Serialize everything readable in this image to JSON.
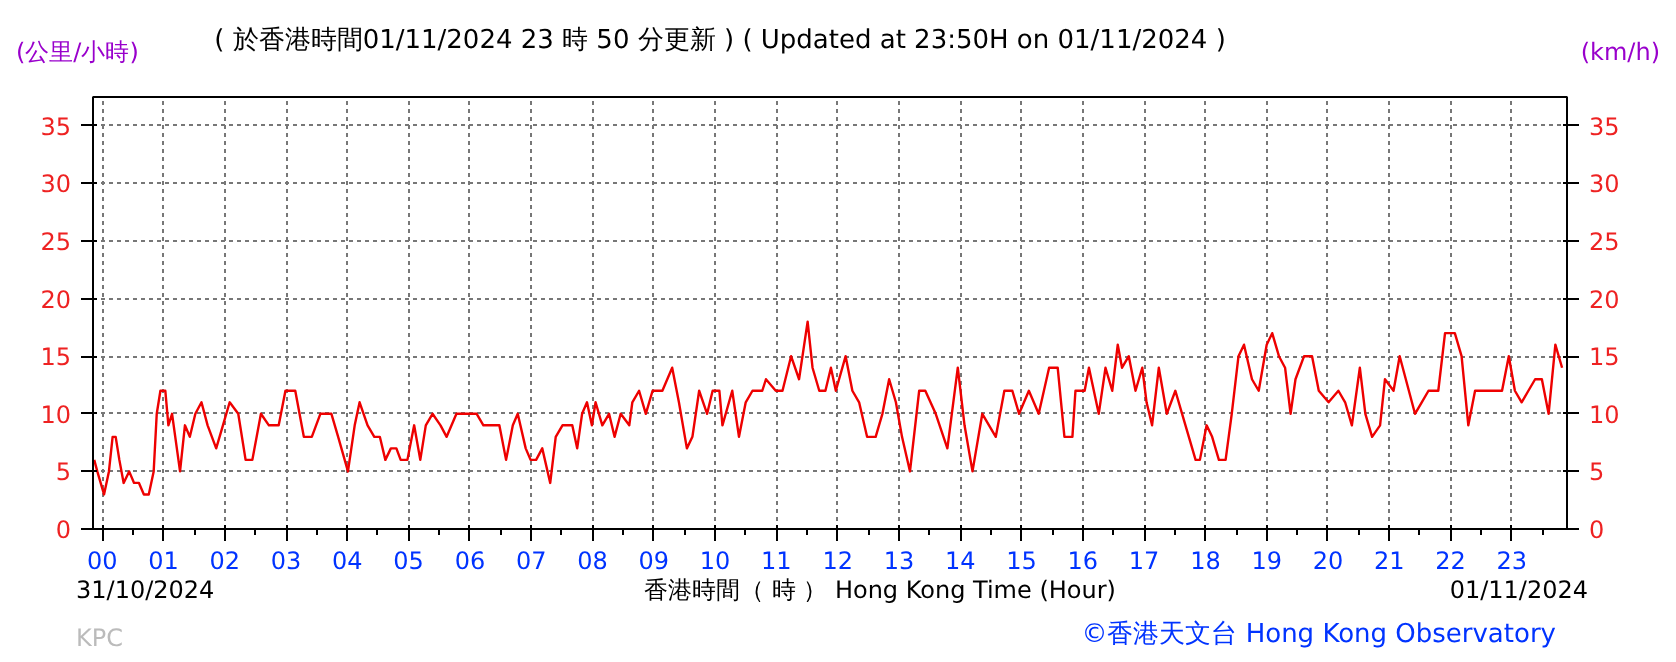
{
  "chart_data": {
    "type": "line",
    "title": "( 於香港時間01/11/2024 23 時 50 分更新 ) ( Updated at 23:50H on 01/11/2024 )",
    "xlabel": "香港時間（ 時 ） Hong Kong Time (Hour)",
    "ylabel": "(公里/小時)",
    "y2label": "(km/h)",
    "annotations": [
      "31/10/2024",
      "01/11/2024",
      "KPC",
      "©香港天文台 Hong Kong Observatory"
    ],
    "series": [
      {
        "color": "#ee0000",
        "x": [
          -0.13,
          -0.08,
          0.03,
          0.11,
          0.17,
          0.22,
          0.28,
          0.35,
          0.44,
          0.52,
          0.6,
          0.68,
          0.76,
          0.84,
          0.89,
          0.95,
          1.03,
          1.08,
          1.14,
          1.27,
          1.35,
          1.43,
          1.52,
          1.62,
          1.72,
          1.86,
          1.97,
          2.08,
          2.22,
          2.34,
          2.45,
          2.59,
          2.72,
          2.88,
          2.99,
          3.15,
          3.29,
          3.42,
          3.56,
          3.74,
          3.85,
          4.01,
          4.12,
          4.2,
          4.33,
          4.44,
          4.53,
          4.62,
          4.71,
          4.8,
          4.87,
          4.98,
          5.09,
          5.19,
          5.28,
          5.39,
          5.52,
          5.62,
          5.78,
          6.11,
          6.22,
          6.48,
          6.59,
          6.7,
          6.78,
          6.91,
          6.99,
          7.08,
          7.18,
          7.31,
          7.4,
          7.51,
          7.67,
          7.75,
          7.83,
          7.91,
          7.99,
          8.05,
          8.16,
          8.27,
          8.36,
          8.46,
          8.6,
          8.65,
          8.76,
          8.87,
          8.98,
          9.14,
          9.3,
          9.41,
          9.54,
          9.63,
          9.74,
          9.87,
          9.96,
          10.07,
          10.12,
          10.28,
          10.39,
          10.5,
          10.61,
          10.77,
          10.83,
          10.99,
          11.1,
          11.24,
          11.37,
          11.51,
          11.59,
          11.7,
          11.8,
          11.89,
          11.97,
          12.13,
          12.24,
          12.35,
          12.48,
          12.62,
          12.73,
          12.84,
          12.95,
          13.05,
          13.18,
          13.33,
          13.43,
          13.6,
          13.79,
          13.96,
          14.07,
          14.2,
          14.36,
          14.47,
          14.58,
          14.72,
          14.85,
          14.96,
          15.12,
          15.28,
          15.45,
          15.59,
          15.7,
          15.83,
          15.88,
          16.03,
          16.1,
          16.26,
          16.37,
          16.48,
          16.57,
          16.64,
          16.75,
          16.86,
          16.97,
          17.04,
          17.13,
          17.24,
          17.37,
          17.51,
          17.62,
          17.73,
          17.84,
          17.91,
          18.02,
          18.11,
          18.22,
          18.33,
          18.43,
          18.54,
          18.63,
          18.76,
          18.87,
          19.0,
          19.09,
          19.2,
          19.3,
          19.39,
          19.47,
          19.61,
          19.74,
          19.85,
          20.01,
          20.17,
          20.28,
          20.39,
          20.52,
          20.61,
          20.72,
          20.85,
          20.93,
          21.07,
          21.17,
          21.32,
          21.42,
          21.53,
          21.64,
          21.8,
          21.91,
          22.07,
          22.18,
          22.29,
          22.4,
          22.51,
          22.67,
          22.84,
          22.95,
          23.05,
          23.16,
          23.27,
          23.38,
          23.49,
          23.6,
          23.71,
          23.82
        ],
        "values": [
          6,
          5,
          3,
          5,
          8,
          8,
          6,
          4,
          5,
          4,
          4,
          3,
          3,
          5,
          10,
          12,
          12,
          9,
          10,
          5,
          9,
          8,
          10,
          11,
          9,
          7,
          9,
          11,
          10,
          6,
          6,
          10,
          9,
          9,
          12,
          12,
          8,
          8,
          10,
          10,
          8,
          5,
          9,
          11,
          9,
          8,
          8,
          6,
          7,
          7,
          6,
          6,
          9,
          6,
          9,
          10,
          9,
          8,
          10,
          10,
          9,
          9,
          6,
          9,
          10,
          7,
          6,
          6,
          7,
          4,
          8,
          9,
          9,
          7,
          10,
          11,
          9,
          11,
          9,
          10,
          8,
          10,
          9,
          11,
          12,
          10,
          12,
          12,
          14,
          11,
          7,
          8,
          12,
          10,
          12,
          12,
          9,
          12,
          8,
          11,
          12,
          12,
          13,
          12,
          12,
          15,
          13,
          18,
          14,
          12,
          12,
          14,
          12,
          15,
          12,
          11,
          8,
          8,
          10,
          13,
          11,
          8,
          5,
          12,
          12,
          10,
          7,
          14,
          9,
          5,
          10,
          9,
          8,
          12,
          12,
          10,
          12,
          10,
          14,
          14,
          8,
          8,
          12,
          12,
          14,
          10,
          14,
          12,
          16,
          14,
          15,
          12,
          14,
          11,
          9,
          14,
          10,
          12,
          10,
          8,
          6,
          6,
          9,
          8,
          6,
          6,
          10,
          15,
          16,
          13,
          12,
          16,
          17,
          15,
          14,
          10,
          13,
          15,
          15,
          12,
          11,
          12,
          11,
          9,
          14,
          10,
          8,
          9,
          13,
          12,
          15,
          12,
          10,
          11,
          12,
          12,
          17,
          17,
          15,
          9,
          12,
          12,
          12,
          12,
          15,
          12,
          11,
          12,
          13,
          13,
          10,
          16,
          14
        ]
      }
    ],
    "xlim": [
      -0.15,
      23.9
    ],
    "xticks": [
      {
        "value": 0,
        "label": "00"
      },
      {
        "value": 1,
        "label": "01"
      },
      {
        "value": 2,
        "label": "02"
      },
      {
        "value": 3,
        "label": "03"
      },
      {
        "value": 4,
        "label": "04"
      },
      {
        "value": 5,
        "label": "05"
      },
      {
        "value": 6,
        "label": "06"
      },
      {
        "value": 7,
        "label": "07"
      },
      {
        "value": 8,
        "label": "08"
      },
      {
        "value": 9,
        "label": "09"
      },
      {
        "value": 10,
        "label": "10"
      },
      {
        "value": 11,
        "label": "11"
      },
      {
        "value": 12,
        "label": "12"
      },
      {
        "value": 13,
        "label": "13"
      },
      {
        "value": 14,
        "label": "14"
      },
      {
        "value": 15,
        "label": "15"
      },
      {
        "value": 16,
        "label": "16"
      },
      {
        "value": 17,
        "label": "17"
      },
      {
        "value": 18,
        "label": "18"
      },
      {
        "value": 19,
        "label": "19"
      },
      {
        "value": 20,
        "label": "20"
      },
      {
        "value": 21,
        "label": "21"
      },
      {
        "value": 22,
        "label": "22"
      },
      {
        "value": 23,
        "label": "23"
      }
    ],
    "ylim": [
      0,
      37.5
    ],
    "yticks": [
      0,
      5,
      10,
      15,
      20,
      25,
      30,
      35
    ],
    "y2lim": [
      0,
      37.5
    ],
    "y2ticks": [
      0,
      5,
      10,
      15,
      20,
      25,
      30,
      35
    ],
    "grid": true,
    "line_style": "solid",
    "marker": "none"
  }
}
